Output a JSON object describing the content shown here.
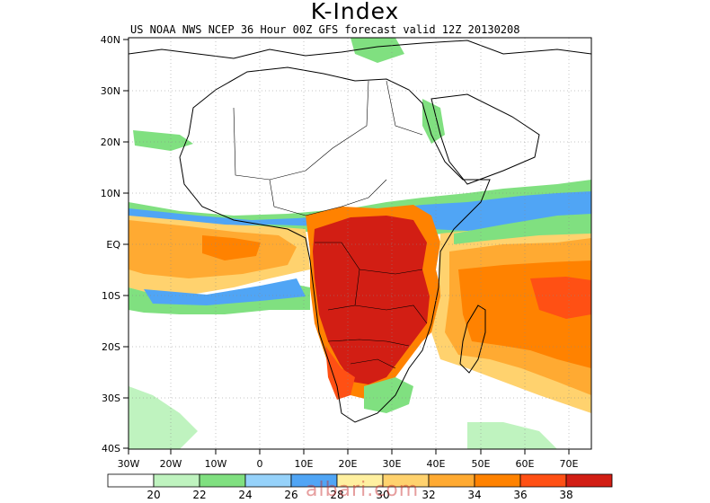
{
  "title": "K-Index",
  "subtitle": "US NOAA NWS NCEP 36 Hour 00Z GFS forecast valid 12Z 20130208",
  "lat_ticks": [
    "40N",
    "30N",
    "20N",
    "10N",
    "EQ",
    "10S",
    "20S",
    "30S",
    "40S"
  ],
  "lon_ticks": [
    "30W",
    "20W",
    "10W",
    "0",
    "10E",
    "20E",
    "30E",
    "40E",
    "50E",
    "60E",
    "70E"
  ],
  "colorbar": {
    "labels": [
      "20",
      "22",
      "24",
      "26",
      "28",
      "30",
      "32",
      "34",
      "36",
      "38"
    ],
    "colors": [
      "#ffffff",
      "#bff3bf",
      "#80e080",
      "#96d2fa",
      "#50a5f5",
      "#fff0a0",
      "#ffd26e",
      "#ffaa32",
      "#ff8200",
      "#ff5014",
      "#d21e14"
    ]
  },
  "watermark": "albari.com"
}
